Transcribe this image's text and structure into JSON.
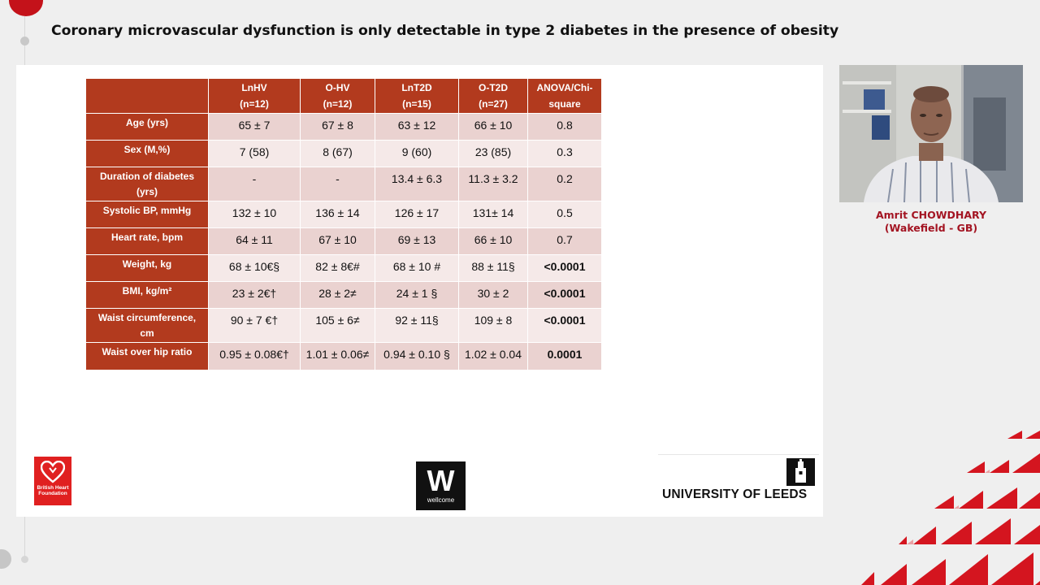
{
  "slide": {
    "title": "Coronary microvascular dysfunction is only detectable in type 2 diabetes in the presence of obesity"
  },
  "table": {
    "headers": [
      [
        "LnHV",
        "(n=12)"
      ],
      [
        "O-HV",
        "(n=12)"
      ],
      [
        "LnT2D",
        "(n=15)"
      ],
      [
        "O-T2D",
        "(n=27)"
      ],
      [
        "ANOVA/Chi-",
        "square"
      ]
    ],
    "rows": [
      {
        "label": [
          "Age (yrs)"
        ],
        "cells": [
          "65 ± 7",
          "67 ± 8",
          "63 ± 12",
          "66 ± 10",
          "0.8"
        ],
        "bold_p": false
      },
      {
        "label": [
          "Sex (M,%)"
        ],
        "cells": [
          "7 (58)",
          "8 (67)",
          "9 (60)",
          "23 (85)",
          "0.3"
        ],
        "bold_p": false
      },
      {
        "label": [
          "Duration of diabetes",
          "(yrs)"
        ],
        "cells": [
          "-",
          "-",
          "13.4 ± 6.3",
          "11.3 ± 3.2",
          "0.2"
        ],
        "bold_p": false
      },
      {
        "label": [
          "Systolic BP, mmHg"
        ],
        "cells": [
          "132 ± 10",
          "136 ± 14",
          "126 ± 17",
          "131± 14",
          "0.5"
        ],
        "bold_p": false
      },
      {
        "label": [
          "Heart rate, bpm"
        ],
        "cells": [
          "64 ± 11",
          "67 ± 10",
          "69 ± 13",
          "66 ± 10",
          "0.7"
        ],
        "bold_p": false
      },
      {
        "label": [
          "Weight, kg"
        ],
        "cells": [
          "68 ± 10€§",
          "82 ± 8€#",
          "68 ± 10 #",
          "88 ± 11§",
          "<0.0001"
        ],
        "bold_p": true
      },
      {
        "label": [
          "BMI, kg/m²"
        ],
        "cells": [
          "23 ± 2€†",
          "28 ± 2≠",
          "24 ± 1 §",
          "30 ± 2",
          "<0.0001"
        ],
        "bold_p": true
      },
      {
        "label": [
          "Waist circumference,",
          "cm"
        ],
        "cells": [
          "90 ± 7 €†",
          "105 ± 6≠",
          "92 ± 11§",
          "109 ± 8",
          "<0.0001"
        ],
        "bold_p": true
      },
      {
        "label": [
          "Waist over hip ratio"
        ],
        "cells": [
          "0.95 ± 0.08€†",
          "1.01 ± 0.06≠",
          "0.94 ± 0.10 §",
          "1.02 ± 0.04",
          "0.0001"
        ],
        "bold_p": true
      }
    ]
  },
  "logos": {
    "bhf": [
      "British Heart",
      "Foundation"
    ],
    "wellcome_mark": "W",
    "wellcome_text": "wellcome",
    "leeds": "UNIVERSITY OF LEEDS"
  },
  "presenter": {
    "name": "Amrit CHOWDHARY",
    "location": "(Wakefield - GB)"
  },
  "colors": {
    "table_header": "#b23a1e",
    "row_odd": "#ead2d0",
    "row_even": "#f5e9e8",
    "accent_red": "#c4121a",
    "presenter_name": "#a31422"
  }
}
